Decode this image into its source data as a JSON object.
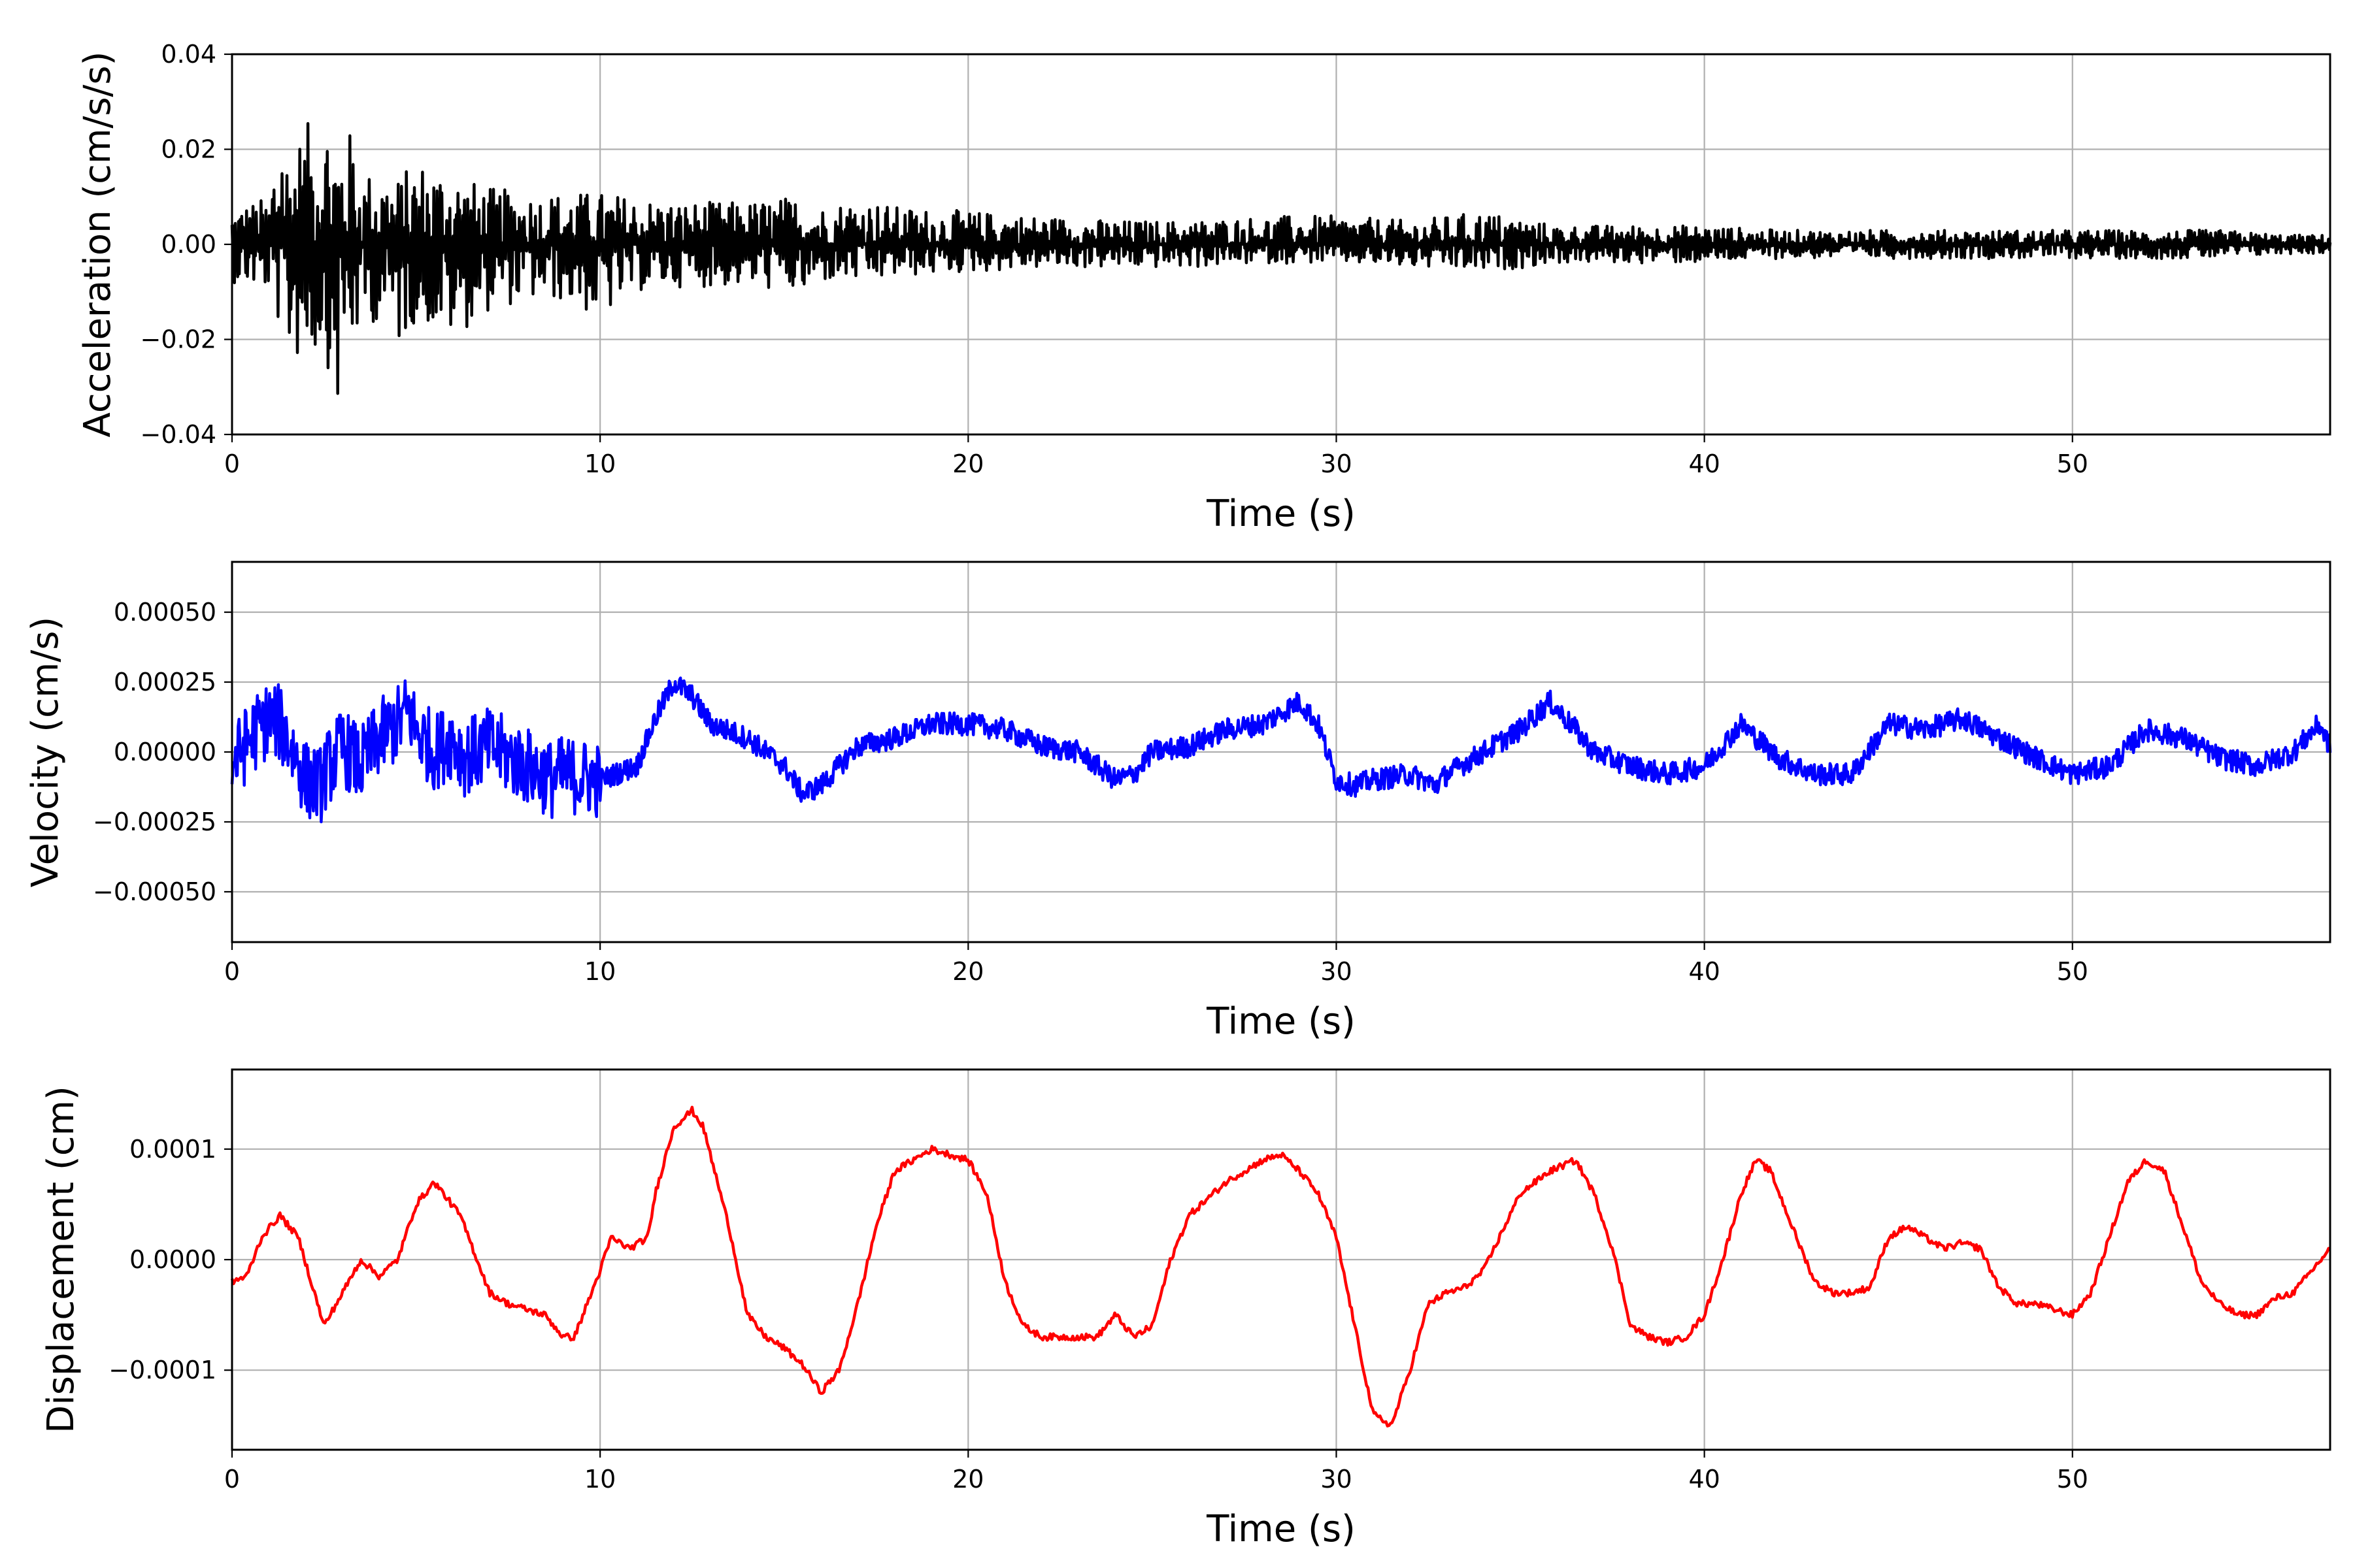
{
  "chart_data": [
    {
      "type": "line",
      "xlabel": "Time (s)",
      "ylabel": "Acceleration (cm/s/s)",
      "color": "#000000",
      "xlim": [
        0,
        57
      ],
      "ylim": [
        -0.04,
        0.04
      ],
      "xticks": [
        0,
        10,
        20,
        30,
        40,
        50
      ],
      "xtick_labels": [
        "0",
        "10",
        "20",
        "30",
        "40",
        "50"
      ],
      "yticks": [
        -0.04,
        -0.02,
        0.0,
        0.02,
        0.04
      ],
      "ytick_labels": [
        "−0.04",
        "−0.02",
        "0.00",
        "0.02",
        "0.04"
      ],
      "grid": true,
      "series": [
        {
          "x": [
            0,
            0.5,
            1.0,
            1.3,
            1.5,
            2.0,
            2.5,
            2.9,
            3.0,
            3.3,
            3.5,
            4.0,
            4.5,
            5.0,
            6.0,
            6.3,
            7.0,
            8.0,
            9.0,
            10.0,
            11.0,
            12.0,
            13.0,
            14.0,
            15.0,
            15.6,
            16.0,
            17.0,
            17.5,
            18.0,
            20.0,
            22.0,
            24.0,
            26.0,
            28.0,
            30.0,
            32.0,
            34.0,
            36.0,
            38.0,
            40.0,
            42.0,
            44.0,
            46.0,
            48.0,
            50.0,
            52.0,
            54.0,
            56.0,
            57.0
          ],
          "y_upper": [
            0.008,
            0.009,
            0.01,
            0.032,
            0.02,
            0.025,
            0.03,
            0.022,
            0.024,
            0.024,
            0.015,
            0.016,
            0.014,
            0.018,
            0.016,
            0.014,
            0.012,
            0.011,
            0.011,
            0.011,
            0.01,
            0.009,
            0.009,
            0.009,
            0.01,
            0.01,
            0.008,
            0.01,
            0.009,
            0.008,
            0.007,
            0.006,
            0.005,
            0.005,
            0.006,
            0.006,
            0.005,
            0.007,
            0.004,
            0.004,
            0.004,
            0.003,
            0.003,
            0.003,
            0.003,
            0.003,
            0.003,
            0.003,
            0.002,
            0.002
          ],
          "y_lower": [
            -0.008,
            -0.009,
            -0.01,
            -0.018,
            -0.024,
            -0.025,
            -0.022,
            -0.037,
            -0.027,
            -0.022,
            -0.018,
            -0.016,
            -0.022,
            -0.016,
            -0.02,
            -0.018,
            -0.014,
            -0.012,
            -0.012,
            -0.016,
            -0.01,
            -0.009,
            -0.009,
            -0.009,
            -0.01,
            -0.011,
            -0.008,
            -0.008,
            -0.008,
            -0.007,
            -0.006,
            -0.005,
            -0.005,
            -0.005,
            -0.004,
            -0.004,
            -0.005,
            -0.006,
            -0.004,
            -0.004,
            -0.004,
            -0.003,
            -0.003,
            -0.003,
            -0.003,
            -0.003,
            -0.003,
            -0.003,
            -0.002,
            -0.002
          ]
        }
      ]
    },
    {
      "type": "line",
      "xlabel": "Time (s)",
      "ylabel": "Velocity (cm/s)",
      "color": "#0000ff",
      "xlim": [
        0,
        57
      ],
      "ylim": [
        -0.00068,
        0.00068
      ],
      "xticks": [
        0,
        10,
        20,
        30,
        40,
        50
      ],
      "xtick_labels": [
        "0",
        "10",
        "20",
        "30",
        "40",
        "50"
      ],
      "yticks": [
        -0.0005,
        -0.00025,
        0.0,
        0.00025,
        0.0005
      ],
      "ytick_labels": [
        "−0.00050",
        "−0.00025",
        "0.00000",
        "0.00025",
        "0.00050"
      ],
      "grid": true,
      "series": [
        {
          "x": [
            0,
            0.5,
            1.0,
            1.3,
            1.6,
            2.0,
            2.4,
            2.5,
            3.0,
            3.5,
            4.0,
            4.5,
            4.8,
            5.0,
            5.5,
            6.0,
            6.3,
            7.0,
            8.0,
            8.7,
            9.0,
            10.0,
            11.0,
            11.5,
            12.0,
            12.5,
            13.0,
            14.0,
            15.0,
            15.5,
            16.0,
            17.0,
            18.0,
            19.0,
            20.0,
            21.0,
            22.0,
            23.0,
            24.0,
            24.5,
            25.0,
            26.0,
            27.0,
            28.0,
            29.0,
            29.5,
            30.0,
            30.5,
            31.0,
            32.0,
            32.7,
            33.0,
            34.0,
            35.0,
            35.8,
            36.5,
            37.0,
            38.0,
            39.0,
            40.0,
            41.0,
            42.0,
            43.0,
            44.0,
            45.0,
            46.0,
            47.0,
            48.0,
            49.0,
            50.0,
            51.0,
            52.0,
            53.0,
            54.0,
            55.0,
            56.0,
            56.7,
            57.0
          ],
          "y": [
            -5e-05,
            5e-05,
            0.00012,
            0.0001,
            2e-05,
            -0.0001,
            -0.00012,
            -8e-05,
            2e-05,
            -5e-05,
            5e-05,
            0.0001,
            0.00015,
            8e-05,
            0.0,
            5e-05,
            -2e-05,
            2e-05,
            -5e-05,
            -0.0001,
            -8e-05,
            -0.0001,
            -5e-05,
            0.00012,
            0.00025,
            0.0002,
            0.0001,
            5e-05,
            -5e-05,
            -0.00015,
            -0.00012,
            2e-05,
            5e-05,
            0.0001,
            0.0001,
            8e-05,
            2e-05,
            0.0,
            -0.0001,
            -8e-05,
            0.0,
            2e-05,
            8e-05,
            0.0001,
            0.00018,
            0.0001,
            -0.0001,
            -0.00012,
            -0.0001,
            -8e-05,
            -0.00012,
            -8e-05,
            0.0,
            8e-05,
            0.00018,
            8e-05,
            0.0,
            -5e-05,
            -8e-05,
            -5e-05,
            0.0001,
            -2e-05,
            -8e-05,
            -8e-05,
            0.0001,
            8e-05,
            0.00012,
            5e-05,
            -2e-05,
            -8e-05,
            -5e-05,
            8e-05,
            5e-05,
            -2e-05,
            -5e-05,
            0.0,
            0.0001,
            2e-05
          ],
          "jitter": 4e-05
        }
      ]
    },
    {
      "type": "line",
      "xlabel": "Time (s)",
      "ylabel": "Displacement (cm)",
      "color": "#ff0000",
      "xlim": [
        0,
        57
      ],
      "ylim": [
        -0.000172,
        0.000172
      ],
      "xticks": [
        0,
        10,
        20,
        30,
        40,
        50
      ],
      "xtick_labels": [
        "0",
        "10",
        "20",
        "30",
        "40",
        "50"
      ],
      "yticks": [
        -0.0001,
        0.0,
        0.0001
      ],
      "ytick_labels": [
        "−0.0001",
        "0.0000",
        "0.0001"
      ],
      "grid": true,
      "series": [
        {
          "x": [
            0,
            0.4,
            0.8,
            1.3,
            1.8,
            2.5,
            3.0,
            3.5,
            4.0,
            4.5,
            5.0,
            5.5,
            6.2,
            7.0,
            7.5,
            8.5,
            9.0,
            9.3,
            10.0,
            10.3,
            10.8,
            11.3,
            11.5,
            12.0,
            12.5,
            12.8,
            13.5,
            14.0,
            14.5,
            15.0,
            15.5,
            16.0,
            16.5,
            17.0,
            17.5,
            18.0,
            18.5,
            19.0,
            19.5,
            20.0,
            20.5,
            21.0,
            21.5,
            22.0,
            22.5,
            23.5,
            24.0,
            24.5,
            25.0,
            25.5,
            26.0,
            27.0,
            28.0,
            28.5,
            29.0,
            29.5,
            30.0,
            30.5,
            31.0,
            31.5,
            32.0,
            32.5,
            33.0,
            33.5,
            34.0,
            35.0,
            35.8,
            36.5,
            37.0,
            37.5,
            38.0,
            38.5,
            39.0,
            39.5,
            40.0,
            40.5,
            41.0,
            41.4,
            41.8,
            42.5,
            43.0,
            43.5,
            44.0,
            44.5,
            45.0,
            45.5,
            46.0,
            46.5,
            47.0,
            47.5,
            48.0,
            48.5,
            49.0,
            49.5,
            50.0,
            50.5,
            51.0,
            51.5,
            52.0,
            52.5,
            53.0,
            53.5,
            54.0,
            54.5,
            55.0,
            55.5,
            56.0,
            56.5,
            57.0
          ],
          "y": [
            -2e-05,
            -1.5e-05,
            2e-05,
            4e-05,
            2e-05,
            -6e-05,
            -3e-05,
            0.0,
            -1.5e-05,
            0.0,
            5e-05,
            7e-05,
            4e-05,
            -3e-05,
            -4e-05,
            -5e-05,
            -7e-05,
            -7e-05,
            -1e-05,
            2e-05,
            1e-05,
            2e-05,
            6e-05,
            0.00012,
            0.000135,
            0.00012,
            3e-05,
            -5e-05,
            -7e-05,
            -8e-05,
            -9.5e-05,
            -0.00012,
            -0.0001,
            -4e-05,
            3e-05,
            8e-05,
            9e-05,
            0.0001,
            9.5e-05,
            9e-05,
            6e-05,
            -2e-05,
            -6e-05,
            -7e-05,
            -7e-05,
            -7e-05,
            -5e-05,
            -7e-05,
            -6e-05,
            0.0,
            4e-05,
            7e-05,
            9e-05,
            9.5e-05,
            8e-05,
            6e-05,
            2e-05,
            -6e-05,
            -0.00014,
            -0.00015,
            -0.0001,
            -4e-05,
            -3e-05,
            -2.5e-05,
            -1e-05,
            6e-05,
            8e-05,
            9e-05,
            6e-05,
            1e-05,
            -6e-05,
            -7e-05,
            -7.5e-05,
            -7e-05,
            -5e-05,
            0.0,
            6e-05,
            9e-05,
            8e-05,
            2e-05,
            -2e-05,
            -3e-05,
            -3e-05,
            -2.5e-05,
            2e-05,
            3e-05,
            2e-05,
            1e-05,
            1.5e-05,
            1e-05,
            -2.5e-05,
            -4e-05,
            -4e-05,
            -4.5e-05,
            -5e-05,
            -3e-05,
            2e-05,
            7e-05,
            9e-05,
            8e-05,
            3e-05,
            -2e-05,
            -4e-05,
            -5e-05,
            -5e-05,
            -3.5e-05,
            -3e-05,
            -1e-05,
            1e-05
          ],
          "jitter": 3e-06
        }
      ]
    }
  ]
}
